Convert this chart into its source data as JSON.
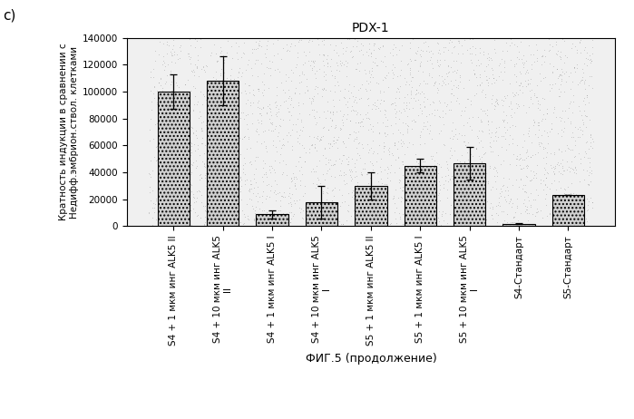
{
  "title": "PDX-1",
  "ylabel": "Кратность индукции в сравнении с\nНедифф.эмбрион.ствол. клетками",
  "xlabel": "ФИГ.5 (продолжение)",
  "panel_label": "c)",
  "ylim": [
    0,
    140000
  ],
  "yticks": [
    0,
    20000,
    40000,
    60000,
    80000,
    100000,
    120000,
    140000
  ],
  "ytick_labels": [
    "0",
    "20000",
    "40000",
    "60000",
    "80000",
    "100000",
    "120000",
    "140000"
  ],
  "categories": [
    "S4 + 1 мкм инг ALK5 II",
    "S4 + 10 мкм инг ALK5\nII",
    "S4 + 1 мкм инг ALK5 I",
    "S4 + 10 мкм инг ALK5\nI",
    "S5 + 1 мкм инг ALK5 II",
    "S5 + 1 мкм инг ALK5 I",
    "S5 + 10 мкм инг ALK5\nI",
    "S4-Стандарт",
    "S5-Стандарт"
  ],
  "values": [
    100000,
    108000,
    9000,
    18000,
    30000,
    45000,
    47000,
    2000,
    23000
  ],
  "errors": [
    13000,
    18000,
    3000,
    12000,
    10000,
    5000,
    12000,
    500,
    0
  ],
  "bar_edgecolor": "#000000",
  "background_color": "#ffffff",
  "title_fontsize": 10,
  "ylabel_fontsize": 7.5,
  "xlabel_fontsize": 9,
  "tick_fontsize": 7.5,
  "panel_fontsize": 11
}
